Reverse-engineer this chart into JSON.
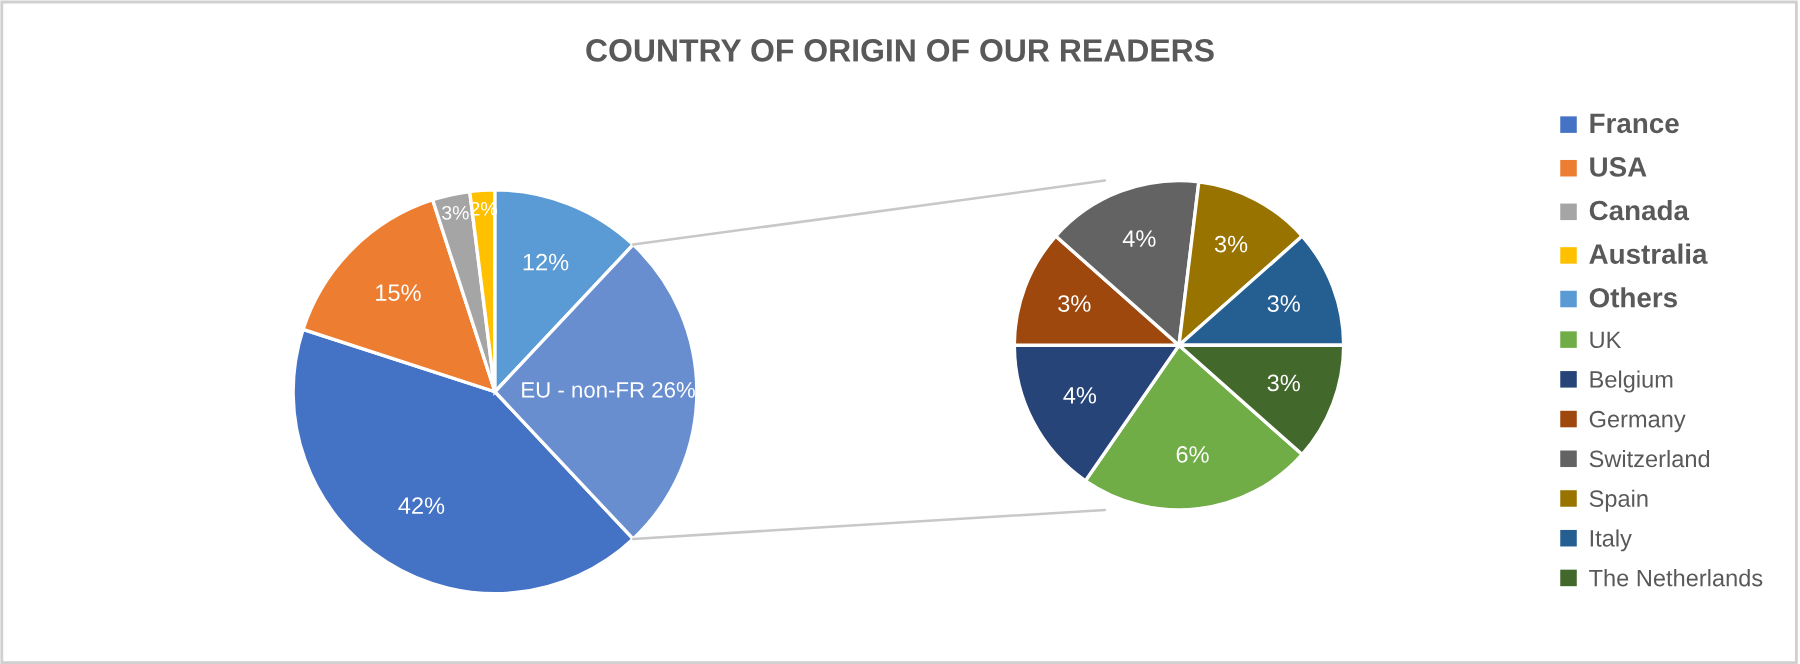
{
  "chart_data": [
    {
      "type": "pie",
      "title": "COUNTRY OF ORIGIN OF OUR READERS",
      "categories": [
        "France",
        "USA",
        "Canada",
        "Australia",
        "Others",
        "EU - non-FR"
      ],
      "values": [
        42,
        15,
        3,
        2,
        12,
        26
      ],
      "colors": [
        "#4472c4",
        "#ed7d31",
        "#a5a5a5",
        "#ffc000",
        "#5b9bd5",
        "#698ed0"
      ],
      "value_labels": [
        "42%",
        "15%",
        "3%",
        "2%",
        "12%",
        "26%"
      ],
      "legend": "right"
    },
    {
      "type": "pie",
      "categories": [
        "UK",
        "Belgium",
        "Germany",
        "Switzerland",
        "Spain",
        "Italy",
        "The Netherlands"
      ],
      "values": [
        6,
        4,
        3,
        4,
        3,
        3,
        3
      ],
      "colors": [
        "#70ad47",
        "#264478",
        "#9e480e",
        "#636363",
        "#997300",
        "#255e91",
        "#43682b"
      ],
      "value_labels": [
        "6%",
        "4%",
        "3%",
        "4%",
        "3%",
        "3%",
        "3%"
      ],
      "legend": "right"
    }
  ]
}
